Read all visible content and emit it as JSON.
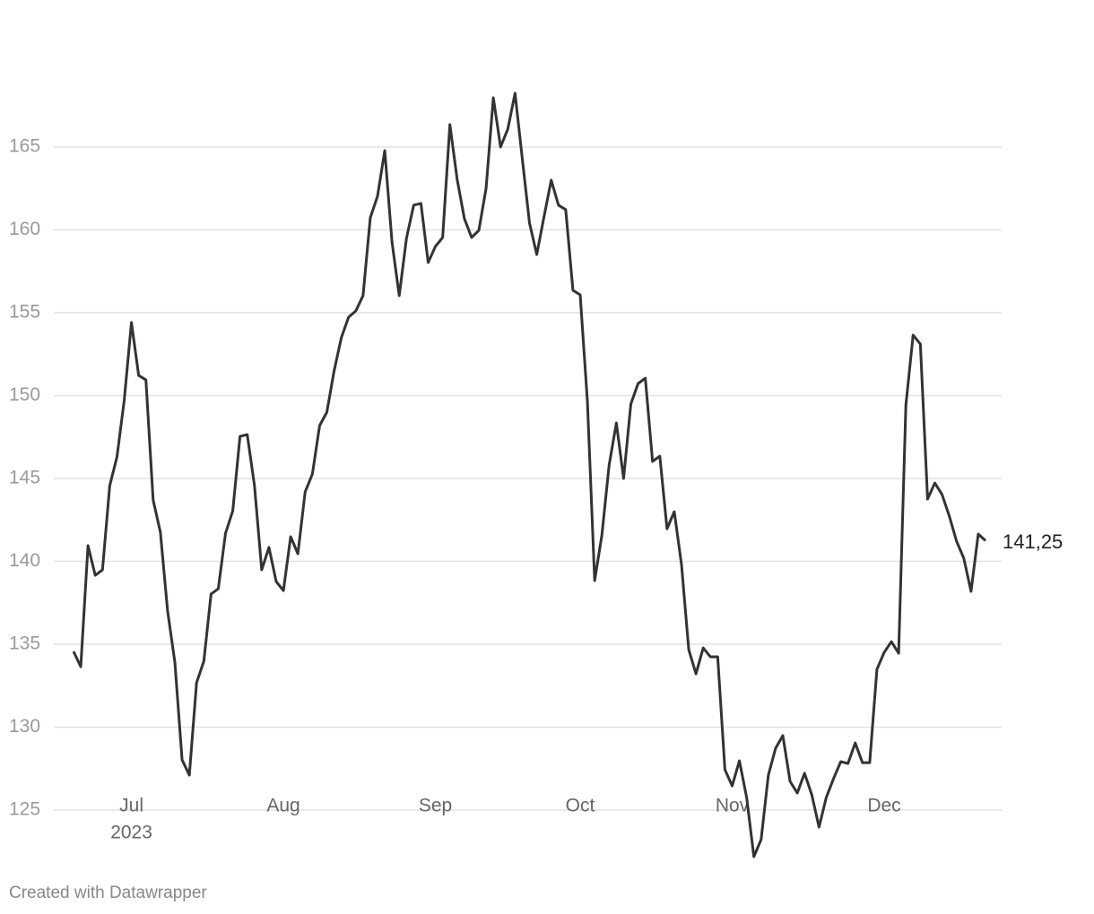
{
  "chart_data": {
    "type": "line",
    "categories": [
      null,
      null,
      null,
      null,
      null,
      null,
      null,
      null,
      "Jul",
      null,
      null,
      null,
      null,
      null,
      null,
      null,
      null,
      null,
      null,
      null,
      null,
      null,
      null,
      null,
      null,
      null,
      null,
      null,
      null,
      "Aug",
      null,
      null,
      null,
      null,
      null,
      null,
      null,
      null,
      null,
      null,
      null,
      null,
      null,
      null,
      null,
      null,
      null,
      null,
      null,
      null,
      "Sep",
      null,
      null,
      null,
      null,
      null,
      null,
      null,
      null,
      null,
      null,
      null,
      null,
      null,
      null,
      null,
      null,
      null,
      null,
      null,
      "Oct",
      null,
      null,
      null,
      null,
      null,
      null,
      null,
      null,
      null,
      null,
      null,
      null,
      null,
      null,
      null,
      null,
      null,
      null,
      null,
      null,
      "Nov",
      null,
      null,
      null,
      null,
      null,
      null,
      null,
      null,
      null,
      null,
      null,
      null,
      null,
      null,
      null,
      null,
      null,
      null,
      null,
      null,
      "Dec",
      null,
      null,
      null,
      null,
      null,
      null,
      null,
      null,
      null,
      null,
      null,
      null,
      null,
      null
    ],
    "x_year_label": "2023",
    "values": [
      134.57,
      133.65,
      140.95,
      139.16,
      139.49,
      144.57,
      146.3,
      149.7,
      154.41,
      151.22,
      150.95,
      143.7,
      141.76,
      137.0,
      133.92,
      128.03,
      127.11,
      132.68,
      133.97,
      138.03,
      138.35,
      141.7,
      143.05,
      147.54,
      147.65,
      144.57,
      139.49,
      140.84,
      138.78,
      138.24,
      141.49,
      140.46,
      144.19,
      145.27,
      148.19,
      149.0,
      151.49,
      153.49,
      154.73,
      155.11,
      156.03,
      160.73,
      162.03,
      164.78,
      159.27,
      156.03,
      159.49,
      161.49,
      161.59,
      158.03,
      159.0,
      159.54,
      166.35,
      163.05,
      160.68,
      159.54,
      159.97,
      162.51,
      167.97,
      165.0,
      166.08,
      168.24,
      164.3,
      160.41,
      158.51,
      160.78,
      163.0,
      161.49,
      161.22,
      156.35,
      156.08,
      149.65,
      138.84,
      141.59,
      145.81,
      148.35,
      145.0,
      149.49,
      150.73,
      151.05,
      146.03,
      146.35,
      141.97,
      143.0,
      139.81,
      134.68,
      133.22,
      134.78,
      134.24,
      134.24,
      127.43,
      126.46,
      127.97,
      125.76,
      122.19,
      123.22,
      127.11,
      128.73,
      129.49,
      126.73,
      126.03,
      127.22,
      125.92,
      123.97,
      125.76,
      126.89,
      127.92,
      127.81,
      129.05,
      127.86,
      127.86,
      133.49,
      134.51,
      135.16,
      134.46,
      149.43,
      153.65,
      153.11,
      143.76,
      144.73,
      144.03,
      142.73,
      141.22,
      140.19,
      138.19,
      141.65,
      141.25
    ],
    "value_labels": [
      null,
      null,
      null,
      null,
      null,
      null,
      null,
      null,
      null,
      null,
      null,
      null,
      null,
      null,
      null,
      null,
      null,
      null,
      null,
      null,
      null,
      null,
      null,
      null,
      null,
      null,
      null,
      null,
      null,
      null,
      null,
      null,
      null,
      null,
      null,
      null,
      null,
      null,
      null,
      null,
      null,
      null,
      null,
      null,
      null,
      null,
      null,
      null,
      null,
      null,
      null,
      null,
      null,
      null,
      null,
      null,
      null,
      null,
      null,
      null,
      null,
      null,
      null,
      null,
      null,
      null,
      null,
      null,
      null,
      null,
      null,
      null,
      null,
      null,
      null,
      null,
      null,
      null,
      null,
      null,
      null,
      null,
      null,
      null,
      null,
      null,
      null,
      null,
      null,
      null,
      null,
      null,
      null,
      null,
      null,
      null,
      null,
      null,
      null,
      null,
      null,
      null,
      null,
      null,
      null,
      null,
      null,
      null,
      null,
      null,
      null,
      null,
      null,
      null,
      null,
      null,
      null,
      null,
      null,
      null,
      null,
      null,
      null,
      null,
      null,
      null,
      "141,25"
    ],
    "color": "#333333",
    "ylim": [
      121.5,
      168.5
    ],
    "yticks": [
      125,
      130,
      135,
      140,
      145,
      150,
      155,
      160,
      165
    ],
    "grid": true,
    "footer": "Created with Datawrapper"
  }
}
